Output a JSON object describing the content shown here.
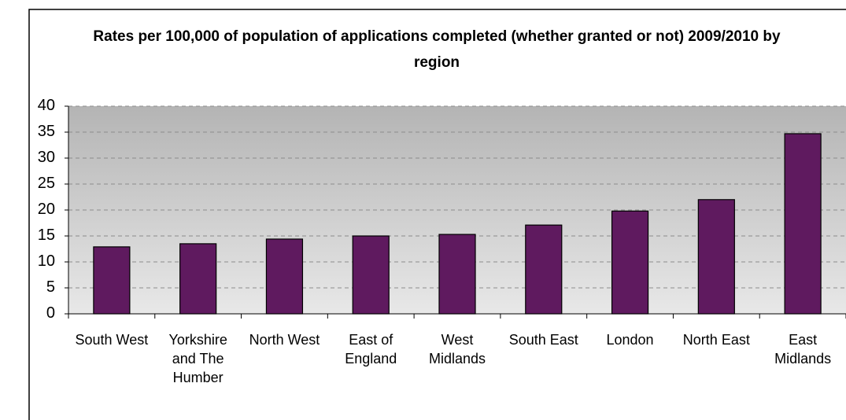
{
  "chart_data": {
    "type": "bar",
    "title": "Rates per 100,000 of population of applications completed (whether granted or not) 2009/2010 by region",
    "categories": [
      "South West",
      "Yorkshire and The Humber",
      "North West",
      "East of England",
      "West Midlands",
      "South East",
      "London",
      "North East",
      "East Midlands"
    ],
    "values": [
      12.9,
      13.5,
      14.4,
      15.0,
      15.3,
      17.1,
      19.8,
      22.0,
      34.7
    ],
    "color": "#5f1a5f",
    "ylim": [
      0,
      40
    ],
    "yticks": [
      0,
      5,
      10,
      15,
      20,
      25,
      30,
      35,
      40
    ],
    "grid": true
  }
}
